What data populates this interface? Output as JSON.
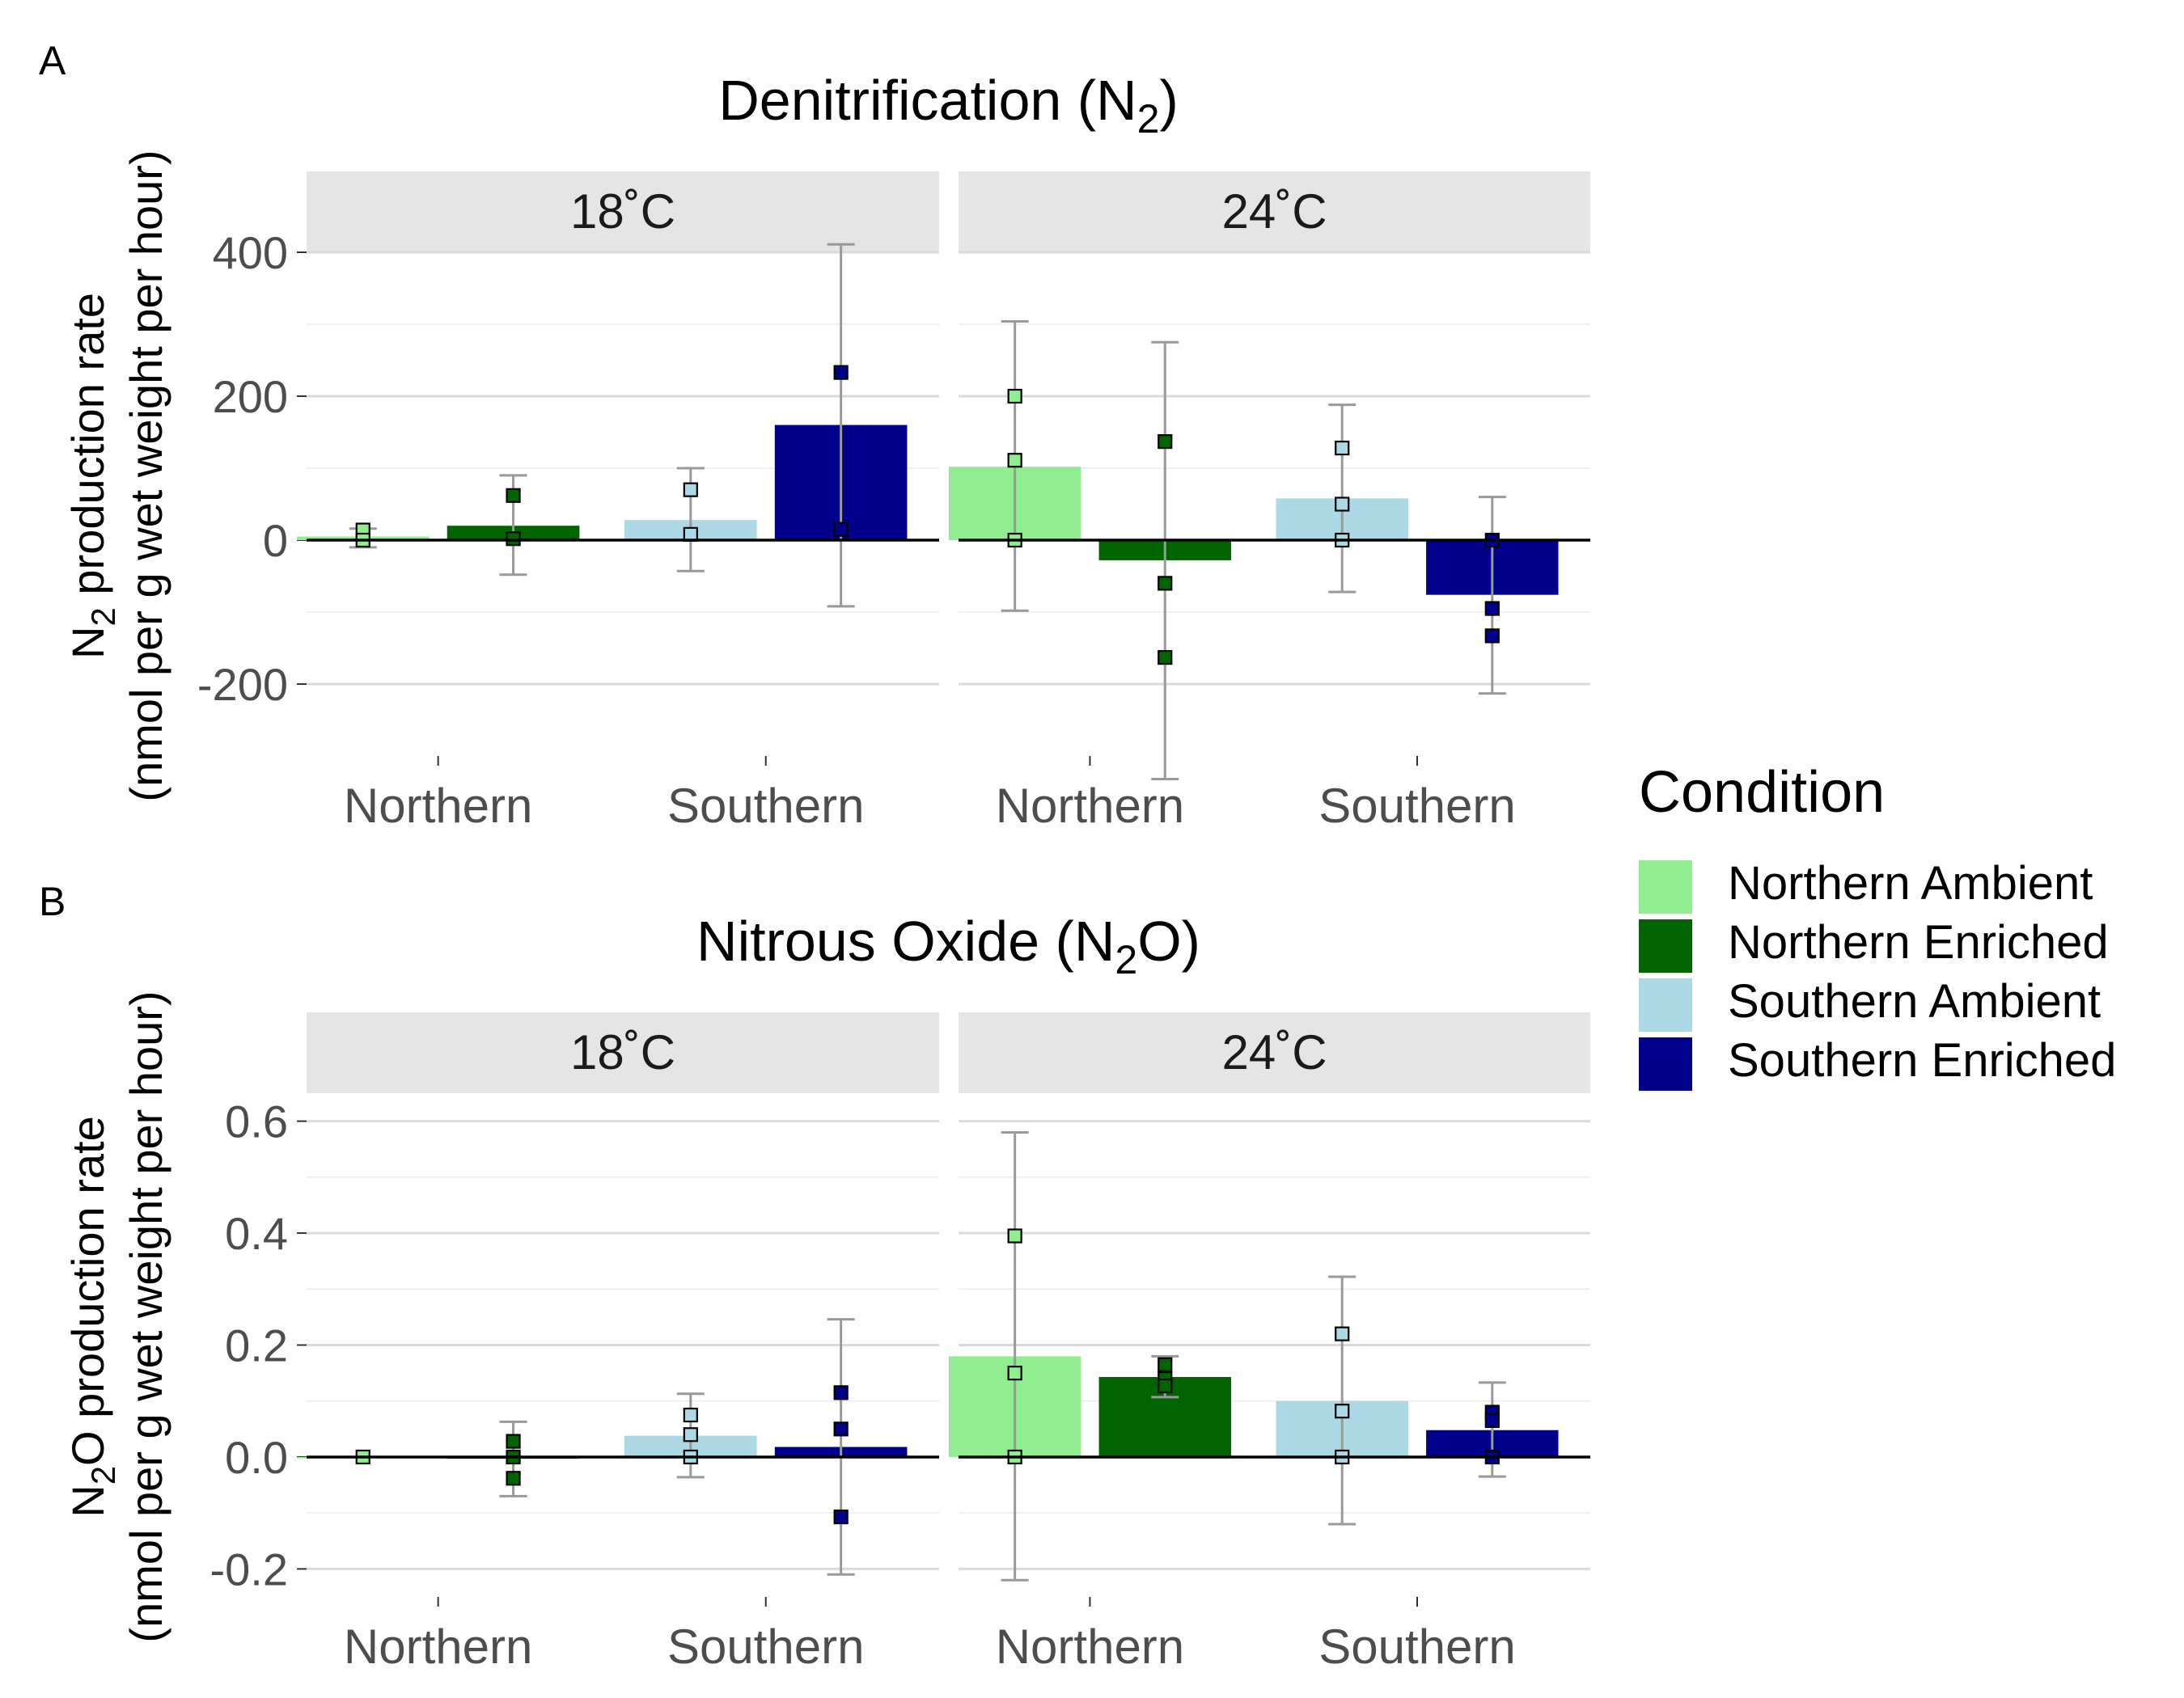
{
  "legend": {
    "title": "Condition",
    "items": [
      {
        "label": "Northern Ambient",
        "color": "#90EE90"
      },
      {
        "label": "Northern Enriched",
        "color": "#006400"
      },
      {
        "label": "Southern Ambient",
        "color": "#ADD8E6"
      },
      {
        "label": "Southern Enriched",
        "color": "#00008B"
      }
    ]
  },
  "chart_data": [
    {
      "type": "bar",
      "panel_tag": "A",
      "title": "Denitrification (N",
      "title_sub": "2",
      "title_tail": ")",
      "ylabel_line1": "N",
      "ylabel_sub": "2",
      "ylabel_tail": " production rate",
      "ylabel_line2": "(nmol per g wet weight per hour)",
      "ylim": [
        -300,
        400
      ],
      "yticks": [
        -200,
        0,
        200,
        400
      ],
      "ytick_labels": [
        "-200",
        "0",
        "200",
        "400"
      ],
      "categories": [
        "Northern",
        "Southern"
      ],
      "facets": [
        {
          "label": "18˚C",
          "bars": [
            {
              "condition": "Northern Ambient",
              "category": "Northern",
              "mean": 5,
              "err_low": -10,
              "err_high": 16,
              "points": [
                14,
                0
              ]
            },
            {
              "condition": "Northern Enriched",
              "category": "Northern",
              "mean": 20,
              "err_low": -48,
              "err_high": 90,
              "points": [
                62,
                2
              ]
            },
            {
              "condition": "Southern Ambient",
              "category": "Southern",
              "mean": 28,
              "err_low": -43,
              "err_high": 100,
              "points": [
                70,
                8
              ]
            },
            {
              "condition": "Southern Enriched",
              "category": "Southern",
              "mean": 160,
              "err_low": -92,
              "err_high": 411,
              "points": [
                233,
                15
              ]
            }
          ]
        },
        {
          "label": "24˚C",
          "bars": [
            {
              "condition": "Northern Ambient",
              "category": "Northern",
              "mean": 102,
              "err_low": -98,
              "err_high": 304,
              "points": [
                200,
                111,
                0
              ]
            },
            {
              "condition": "Northern Enriched",
              "category": "Northern",
              "mean": -28,
              "err_low": -332,
              "err_high": 275,
              "points": [
                137,
                -60,
                -163
              ]
            },
            {
              "condition": "Southern Ambient",
              "category": "Southern",
              "mean": 58,
              "err_low": -72,
              "err_high": 188,
              "points": [
                128,
                50,
                0
              ]
            },
            {
              "condition": "Southern Enriched",
              "category": "Southern",
              "mean": -76,
              "err_low": -213,
              "err_high": 60,
              "points": [
                0,
                -95,
                -133
              ]
            }
          ]
        }
      ]
    },
    {
      "type": "bar",
      "panel_tag": "B",
      "title": "Nitrous Oxide (N",
      "title_sub": "2",
      "title_tail": "O)",
      "ylabel_line1": "N",
      "ylabel_sub": "2",
      "ylabel_tail": "O production rate",
      "ylabel_line2": "(nmol per g wet weight per hour)",
      "ylim": [
        -0.25,
        0.65
      ],
      "yticks": [
        -0.2,
        0.0,
        0.2,
        0.4,
        0.6
      ],
      "ytick_labels": [
        "-0.2",
        "0.0",
        "0.2",
        "0.4",
        "0.6"
      ],
      "categories": [
        "Northern",
        "Southern"
      ],
      "facets": [
        {
          "label": "18˚C",
          "bars": [
            {
              "condition": "Northern Ambient",
              "category": "Northern",
              "mean": 0.0,
              "err_low": 0.0,
              "err_high": 0.0,
              "points": [
                0.0
              ]
            },
            {
              "condition": "Northern Enriched",
              "category": "Northern",
              "mean": -0.003,
              "err_low": -0.07,
              "err_high": 0.063,
              "points": [
                0.028,
                0.0,
                -0.038
              ]
            },
            {
              "condition": "Southern Ambient",
              "category": "Southern",
              "mean": 0.038,
              "err_low": -0.036,
              "err_high": 0.113,
              "points": [
                0.075,
                0.04,
                0.0
              ]
            },
            {
              "condition": "Southern Enriched",
              "category": "Southern",
              "mean": 0.018,
              "err_low": -0.21,
              "err_high": 0.246,
              "points": [
                0.115,
                0.05,
                -0.107
              ]
            }
          ]
        },
        {
          "label": "24˚C",
          "bars": [
            {
              "condition": "Northern Ambient",
              "category": "Northern",
              "mean": 0.18,
              "err_low": -0.22,
              "err_high": 0.58,
              "points": [
                0.395,
                0.15,
                0.0
              ]
            },
            {
              "condition": "Northern Enriched",
              "category": "Northern",
              "mean": 0.143,
              "err_low": 0.107,
              "err_high": 0.18,
              "points": [
                0.165,
                0.14,
                0.127
              ]
            },
            {
              "condition": "Southern Ambient",
              "category": "Southern",
              "mean": 0.1,
              "err_low": -0.12,
              "err_high": 0.322,
              "points": [
                0.22,
                0.082,
                0.0
              ]
            },
            {
              "condition": "Southern Enriched",
              "category": "Southern",
              "mean": 0.048,
              "err_low": -0.035,
              "err_high": 0.133,
              "points": [
                0.08,
                0.065,
                0.0
              ]
            }
          ]
        }
      ]
    }
  ]
}
